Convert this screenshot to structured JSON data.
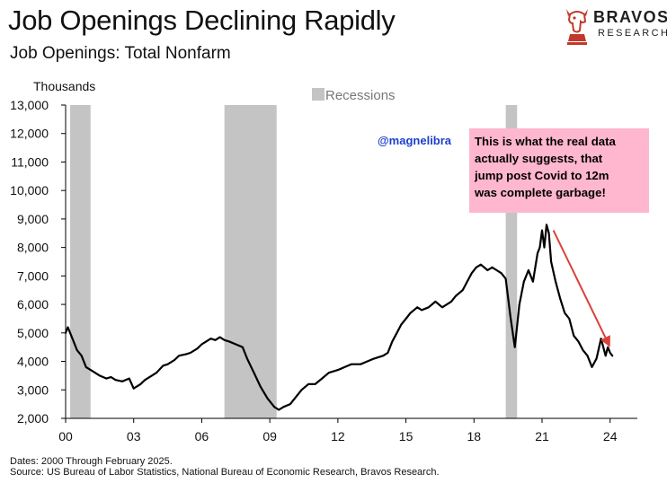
{
  "header": {
    "title": "Job Openings Declining Rapidly",
    "subtitle": "Job Openings: Total Nonfarm"
  },
  "logo": {
    "name": "BRAVOS",
    "sub": "RESEARCH"
  },
  "chart_data": {
    "type": "line",
    "title": "Job Openings Declining Rapidly",
    "subtitle": "Job Openings: Total Nonfarm",
    "ylabel": "Thousands",
    "xlabel": "",
    "ylim": [
      2000,
      13000
    ],
    "xlim": [
      2000,
      2025.2
    ],
    "yticks": [
      2000,
      3000,
      4000,
      5000,
      6000,
      7000,
      8000,
      9000,
      10000,
      11000,
      12000,
      13000
    ],
    "ytick_labels": [
      "2,000",
      "3,000",
      "4,000",
      "5,000",
      "6,000",
      "7,000",
      "8,000",
      "9,000",
      "10,000",
      "11,000",
      "12,000",
      "13,000"
    ],
    "xticks": [
      2000,
      2003,
      2006,
      2009,
      2012,
      2015,
      2018,
      2021,
      2024
    ],
    "xtick_labels": [
      "00",
      "03",
      "06",
      "09",
      "12",
      "15",
      "18",
      "21",
      "24"
    ],
    "legend": {
      "label": "Recessions",
      "placement": "top-center"
    },
    "recessions": [
      [
        2000.2,
        2001.1
      ],
      [
        2007.0,
        2009.3
      ],
      [
        2019.4,
        2019.9
      ]
    ],
    "series": [
      {
        "name": "Job Openings: Total Nonfarm",
        "x": [
          2000.0,
          2000.1,
          2000.3,
          2000.5,
          2000.7,
          2000.9,
          2001.1,
          2001.3,
          2001.5,
          2001.8,
          2002.0,
          2002.2,
          2002.5,
          2002.8,
          2003.0,
          2003.3,
          2003.5,
          2003.8,
          2004.0,
          2004.3,
          2004.5,
          2004.8,
          2005.0,
          2005.3,
          2005.5,
          2005.8,
          2006.0,
          2006.2,
          2006.4,
          2006.6,
          2006.8,
          2007.0,
          2007.2,
          2007.5,
          2007.8,
          2008.0,
          2008.3,
          2008.6,
          2008.9,
          2009.2,
          2009.4,
          2009.6,
          2009.9,
          2010.1,
          2010.4,
          2010.7,
          2011.0,
          2011.3,
          2011.6,
          2012.0,
          2012.3,
          2012.6,
          2013.0,
          2013.3,
          2013.6,
          2014.0,
          2014.2,
          2014.4,
          2014.6,
          2014.8,
          2015.0,
          2015.2,
          2015.5,
          2015.7,
          2016.0,
          2016.3,
          2016.6,
          2017.0,
          2017.2,
          2017.5,
          2017.7,
          2017.9,
          2018.1,
          2018.3,
          2018.6,
          2018.8,
          2019.0,
          2019.2,
          2019.4,
          2019.6,
          2019.8,
          2020.0,
          2020.2,
          2020.4,
          2020.6,
          2020.8,
          2020.9,
          2021.0,
          2021.1,
          2021.2,
          2021.3,
          2021.4,
          2021.6,
          2021.8,
          2022.0,
          2022.2,
          2022.4,
          2022.6,
          2022.8,
          2023.0,
          2023.2,
          2023.4,
          2023.6,
          2023.8,
          2023.9,
          2024.0,
          2024.1
        ],
        "values": [
          5000,
          5200,
          4800,
          4400,
          4200,
          3800,
          3700,
          3600,
          3500,
          3400,
          3450,
          3350,
          3300,
          3400,
          3050,
          3200,
          3350,
          3500,
          3600,
          3850,
          3900,
          4050,
          4200,
          4250,
          4300,
          4450,
          4600,
          4700,
          4800,
          4750,
          4850,
          4750,
          4700,
          4600,
          4500,
          4100,
          3600,
          3100,
          2700,
          2400,
          2300,
          2400,
          2500,
          2700,
          3000,
          3200,
          3200,
          3400,
          3600,
          3700,
          3800,
          3900,
          3900,
          4000,
          4100,
          4200,
          4300,
          4700,
          5000,
          5300,
          5500,
          5700,
          5900,
          5800,
          5900,
          6100,
          5900,
          6100,
          6300,
          6500,
          6800,
          7100,
          7300,
          7400,
          7200,
          7300,
          7200,
          7100,
          6900,
          5600,
          4500,
          6000,
          6800,
          7200,
          6800,
          7800,
          8000,
          8600,
          8000,
          8800,
          8500,
          7500,
          6800,
          6200,
          5700,
          5500,
          4900,
          4700,
          4400,
          4200,
          3800,
          4100,
          4800,
          4200,
          4500,
          4300,
          4200
        ]
      }
    ],
    "annotations": [
      {
        "type": "arrow",
        "from": [
          2021.5,
          8600
        ],
        "to": [
          2024.0,
          4500
        ],
        "color": "#d9413a"
      }
    ]
  },
  "annotation": {
    "handle": "@magnelibra",
    "callout_lines": [
      "This is what the real data",
      "actually suggests, that",
      "jump post Covid to 12m",
      "was complete garbage!"
    ]
  },
  "footer": {
    "dates": "Dates: 2000 Through February 2025.",
    "source": "Source: US Bureau of Labor Statistics, National Bureau of Economic Research, Bravos Research."
  },
  "colors": {
    "line": "#000000",
    "recession": "#c4c4c4",
    "callout_bg": "#ffb6cf",
    "arrow": "#d9413a",
    "handle": "#1d3fcc"
  }
}
